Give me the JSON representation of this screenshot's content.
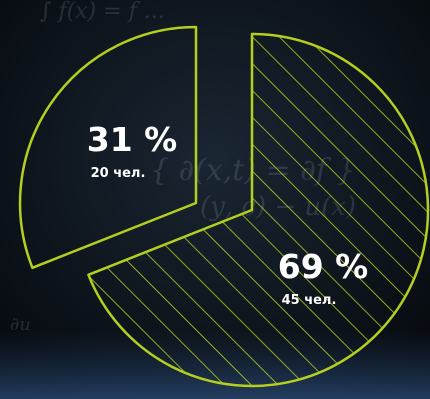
{
  "chart_data": {
    "type": "pie",
    "slices": [
      {
        "percent_label": "31 %",
        "count_label": "20 чел.",
        "value": 31,
        "count": 20,
        "hatched": false
      },
      {
        "percent_label": "69 %",
        "count_label": "45 чел.",
        "value": 69,
        "count": 45,
        "hatched": true
      }
    ]
  },
  "colors": {
    "stroke": "#b5cf1f",
    "hatch": "#b5cf1f",
    "text": "#ffffff",
    "background": "#0b1118"
  }
}
